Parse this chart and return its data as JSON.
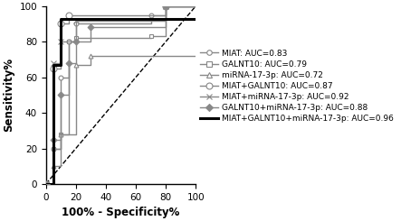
{
  "title": "",
  "xlabel": "100% - Specificity%",
  "ylabel": "Sensitivity%",
  "xlim": [
    0,
    100
  ],
  "ylim": [
    0,
    100
  ],
  "xticks": [
    0,
    20,
    40,
    60,
    80,
    100
  ],
  "yticks": [
    0,
    20,
    40,
    60,
    80,
    100
  ],
  "curves": [
    {
      "label": "MIAT: AUC=0.83",
      "color": "#888888",
      "linewidth": 1.0,
      "linestyle": "-",
      "marker": "o",
      "markersize": 3.5,
      "markerfacecolor": "white",
      "markeredgecolor": "#888888",
      "markevery": 2,
      "x": [
        0,
        5,
        5,
        10,
        10,
        15,
        15,
        20,
        20,
        70,
        70,
        80,
        80,
        100
      ],
      "y": [
        0,
        0,
        20,
        20,
        60,
        60,
        80,
        80,
        90,
        90,
        95,
        95,
        100,
        100
      ]
    },
    {
      "label": "GALNT10: AUC=0.79",
      "color": "#888888",
      "linewidth": 1.0,
      "linestyle": "-",
      "marker": "s",
      "markersize": 3.5,
      "markerfacecolor": "white",
      "markeredgecolor": "#888888",
      "markevery": 2,
      "x": [
        0,
        5,
        5,
        10,
        10,
        15,
        15,
        20,
        20,
        70,
        70,
        80,
        80,
        100
      ],
      "y": [
        0,
        0,
        20,
        20,
        28,
        28,
        80,
        80,
        82,
        82,
        83,
        83,
        100,
        100
      ]
    },
    {
      "label": "miRNA-17-3p: AUC=0.72",
      "color": "#888888",
      "linewidth": 1.0,
      "linestyle": "-",
      "marker": "^",
      "markersize": 3.5,
      "markerfacecolor": "white",
      "markeredgecolor": "#888888",
      "markevery": 2,
      "x": [
        0,
        5,
        5,
        10,
        10,
        20,
        20,
        30,
        30,
        100
      ],
      "y": [
        0,
        0,
        10,
        10,
        28,
        28,
        67,
        67,
        72,
        72
      ]
    },
    {
      "label": "MIAT+GALNT10: AUC=0.87",
      "color": "#888888",
      "linewidth": 1.0,
      "linestyle": "-",
      "marker": "o",
      "markersize": 5,
      "markerfacecolor": "white",
      "markeredgecolor": "#888888",
      "markevery": 2,
      "x": [
        0,
        5,
        5,
        10,
        10,
        15,
        15,
        80,
        80,
        100
      ],
      "y": [
        0,
        0,
        65,
        65,
        90,
        90,
        95,
        95,
        100,
        100
      ]
    },
    {
      "label": "MIAT+miRNA-17-3p: AUC=0.92",
      "color": "#888888",
      "linewidth": 1.0,
      "linestyle": "-",
      "marker": "x",
      "markersize": 4.5,
      "markerfacecolor": "#888888",
      "markeredgecolor": "#888888",
      "markevery": 2,
      "x": [
        0,
        5,
        5,
        10,
        10,
        20,
        20,
        80,
        80,
        100
      ],
      "y": [
        0,
        0,
        68,
        68,
        80,
        80,
        92,
        92,
        100,
        100
      ]
    },
    {
      "label": "GALNT10+miRNA-17-3p: AUC=0.88",
      "color": "#888888",
      "linewidth": 1.0,
      "linestyle": "-",
      "marker": "D",
      "markersize": 3.5,
      "markerfacecolor": "#888888",
      "markeredgecolor": "#888888",
      "markevery": 2,
      "x": [
        0,
        5,
        5,
        10,
        10,
        15,
        15,
        20,
        20,
        30,
        30,
        80,
        80,
        100
      ],
      "y": [
        0,
        0,
        25,
        25,
        50,
        50,
        68,
        68,
        80,
        80,
        88,
        88,
        100,
        100
      ]
    },
    {
      "label": "MIAT+GALNT10+miRNA-17-3p: AUC=0.96",
      "color": "#000000",
      "linewidth": 2.2,
      "linestyle": "-",
      "marker": "None",
      "markersize": 0,
      "markerfacecolor": "black",
      "markeredgecolor": "black",
      "markevery": 1,
      "x": [
        0,
        5,
        5,
        10,
        10,
        100
      ],
      "y": [
        0,
        0,
        67,
        67,
        93,
        93
      ]
    }
  ],
  "reference_line": {
    "x": [
      0,
      100
    ],
    "y": [
      0,
      100
    ],
    "color": "#000000",
    "linestyle": "--",
    "linewidth": 1.0
  },
  "bg_color": "#ffffff",
  "legend_fontsize": 6.5,
  "axis_fontsize": 8.5,
  "tick_fontsize": 7.5
}
